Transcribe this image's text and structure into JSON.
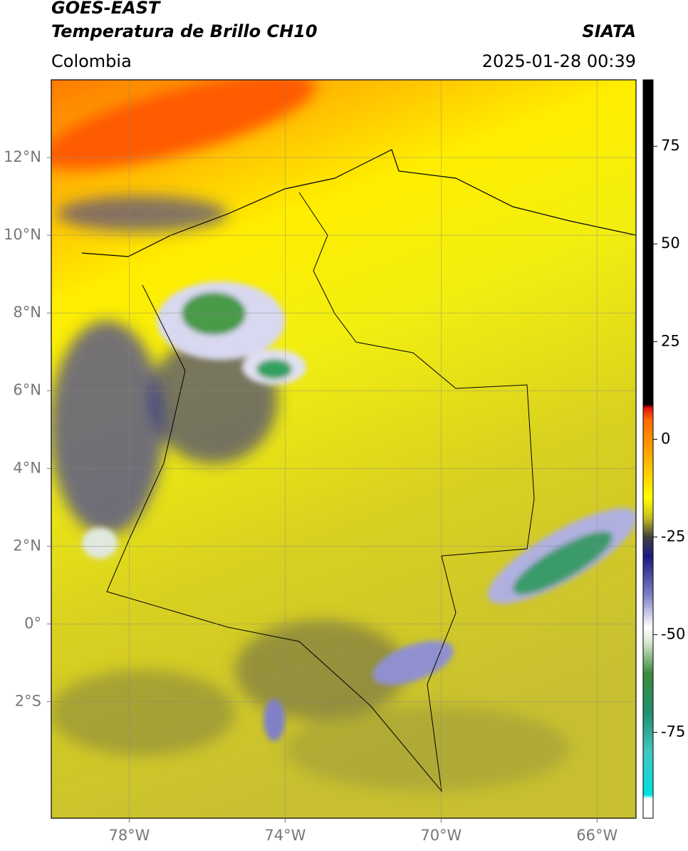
{
  "header": {
    "title": "GOES-EAST",
    "subtitle": "Temperatura de Brillo CH10",
    "source": "SIATA",
    "region": "Colombia",
    "datetime": "2025-01-28 00:39"
  },
  "map": {
    "type": "map",
    "xlim": [
      -80,
      -65
    ],
    "ylim": [
      -5,
      14
    ],
    "xticks": [
      {
        "value": -78,
        "label": "78°W"
      },
      {
        "value": -74,
        "label": "74°W"
      },
      {
        "value": -70,
        "label": "70°W"
      },
      {
        "value": -66,
        "label": "66°W"
      }
    ],
    "yticks": [
      {
        "value": 12,
        "label": "12°N"
      },
      {
        "value": 10,
        "label": "10°N"
      },
      {
        "value": 8,
        "label": "8°N"
      },
      {
        "value": 6,
        "label": "6°N"
      },
      {
        "value": 4,
        "label": "4°N"
      },
      {
        "value": 2,
        "label": "2°N"
      },
      {
        "value": 0,
        "label": "0°"
      },
      {
        "value": -2,
        "label": "2°S"
      }
    ],
    "grid": true
  },
  "colorbar": {
    "lim": [
      -97,
      92
    ],
    "ticks": [
      75,
      50,
      25,
      0,
      -25,
      -50,
      -75
    ],
    "colormap": [
      {
        "value": -97,
        "color": "#ffffff"
      },
      {
        "value": -92,
        "color": "#ffffff"
      },
      {
        "value": -91,
        "color": "#00e0e0"
      },
      {
        "value": -80,
        "color": "#40c8c0"
      },
      {
        "value": -70,
        "color": "#209070"
      },
      {
        "value": -60,
        "color": "#3a8a3a"
      },
      {
        "value": -52,
        "color": "#d8e8d0"
      },
      {
        "value": -48,
        "color": "#ffffff"
      },
      {
        "value": -40,
        "color": "#8080c8"
      },
      {
        "value": -30,
        "color": "#1a1a80"
      },
      {
        "value": -25,
        "color": "#404040"
      },
      {
        "value": -20,
        "color": "#c8c020"
      },
      {
        "value": -15,
        "color": "#ffff00"
      },
      {
        "value": -5,
        "color": "#ffb000"
      },
      {
        "value": 5,
        "color": "#ff6a00"
      },
      {
        "value": 8,
        "color": "#e01010"
      },
      {
        "value": 9,
        "color": "#000000"
      },
      {
        "value": 92,
        "color": "#000000"
      }
    ]
  }
}
